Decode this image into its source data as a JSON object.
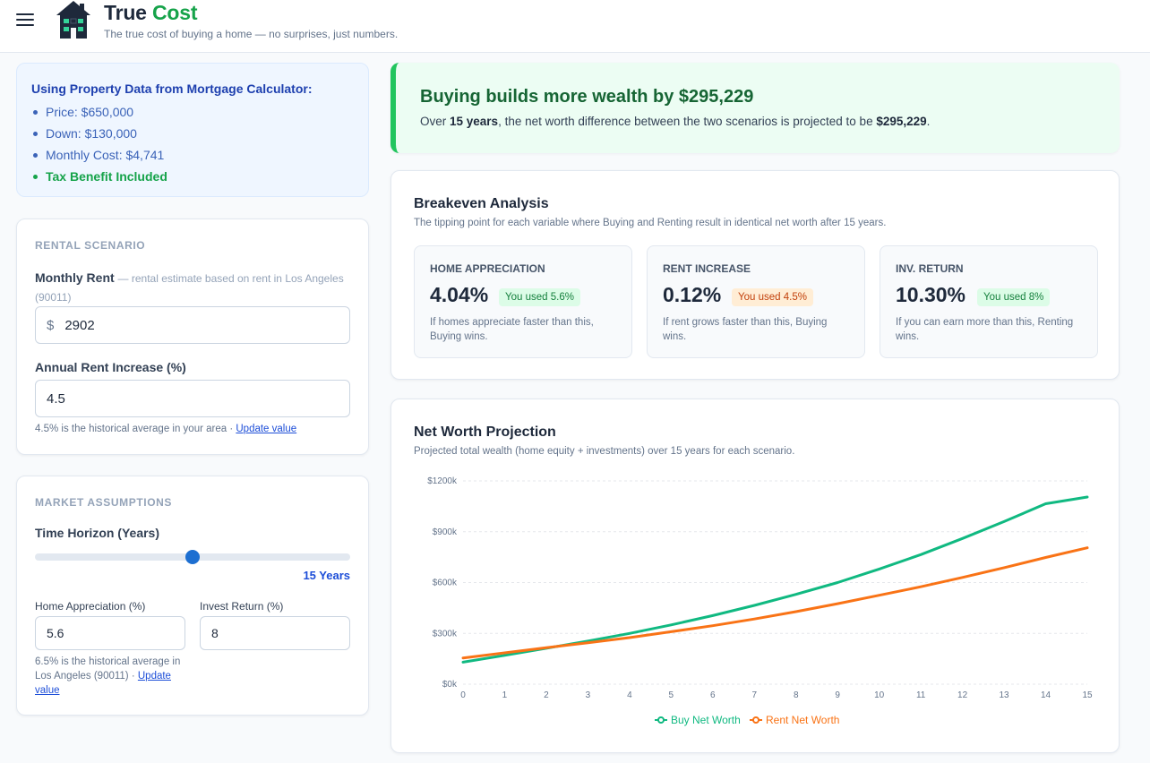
{
  "header": {
    "brand_main": "True",
    "brand_accent": "Cost",
    "tagline": "The true cost of buying a home — no surprises, just numbers."
  },
  "property": {
    "title": "Using Property Data from Mortgage Calculator:",
    "price": "Price: $650,000",
    "down": "Down: $130,000",
    "monthly": "Monthly Cost: $4,741",
    "tax": "Tax Benefit Included"
  },
  "rental": {
    "section": "RENTAL SCENARIO",
    "rent_label": "Monthly Rent",
    "rent_hint": "— rental estimate based on rent in Los Angeles (90011)",
    "rent_prefix": "$",
    "rent_value": "2902",
    "increase_label": "Annual Rent Increase (%)",
    "increase_value": "4.5",
    "increase_help": "4.5% is the historical average in your area · ",
    "update_link": "Update value"
  },
  "market": {
    "section": "MARKET ASSUMPTIONS",
    "horizon_label": "Time Horizon (Years)",
    "horizon_fraction": 0.5,
    "horizon_display": "15 Years",
    "appreciation_label": "Home Appreciation (%)",
    "appreciation_value": "5.6",
    "invest_label": "Invest Return (%)",
    "invest_value": "8",
    "appreciation_help": "6.5% is the historical average in Los Angeles (90011) · ",
    "update_link": "Update value"
  },
  "banner": {
    "title": "Buying builds more wealth by $295,229",
    "sub_prefix": "Over ",
    "sub_years": "15 years",
    "sub_middle": ", the net worth difference between the two scenarios is projected to be ",
    "sub_amount": "$295,229",
    "sub_suffix": "."
  },
  "breakeven": {
    "title": "Breakeven Analysis",
    "subtitle": "The tipping point for each variable where Buying and Renting result in identical net worth after 15 years.",
    "items": [
      {
        "label": "HOME APPRECIATION",
        "value": "4.04%",
        "badge": "You used 5.6%",
        "desc": "If homes appreciate faster than this, Buying wins."
      },
      {
        "label": "RENT INCREASE",
        "value": "0.12%",
        "badge": "You used 4.5%",
        "desc": "If rent grows faster than this, Buying wins."
      },
      {
        "label": "INV. RETURN",
        "value": "10.30%",
        "badge": "You used 8%",
        "desc": "If you can earn more than this, Renting wins."
      }
    ]
  },
  "projection": {
    "title": "Net Worth Projection",
    "subtitle": "Projected total wealth (home equity + investments) over 15 years for each scenario."
  },
  "colors": {
    "buy": "#10b981",
    "rent": "#f97316",
    "accent_blue": "#1d4ed8"
  },
  "chart_data": {
    "type": "line",
    "x": [
      0,
      1,
      2,
      3,
      4,
      5,
      6,
      7,
      8,
      9,
      10,
      11,
      12,
      13,
      14,
      15
    ],
    "ylim": [
      0,
      1200000
    ],
    "yticks": [
      0,
      300000,
      600000,
      900000,
      1200000
    ],
    "ytick_labels": [
      "$0k",
      "$300k",
      "$600k",
      "$900k",
      "$1200k"
    ],
    "grid": true,
    "legend": "bottom-center",
    "series": [
      {
        "name": "Buy Net Worth",
        "color": "#10b981",
        "values": [
          130000,
          170000,
          212000,
          255000,
          300000,
          350000,
          405000,
          465000,
          530000,
          600000,
          680000,
          765000,
          860000,
          960000,
          1065000,
          1105000
        ]
      },
      {
        "name": "Rent Net Worth",
        "color": "#f97316",
        "values": [
          155000,
          185000,
          215000,
          245000,
          275000,
          310000,
          345000,
          385000,
          428000,
          475000,
          525000,
          575000,
          630000,
          688000,
          748000,
          805000
        ]
      }
    ]
  }
}
